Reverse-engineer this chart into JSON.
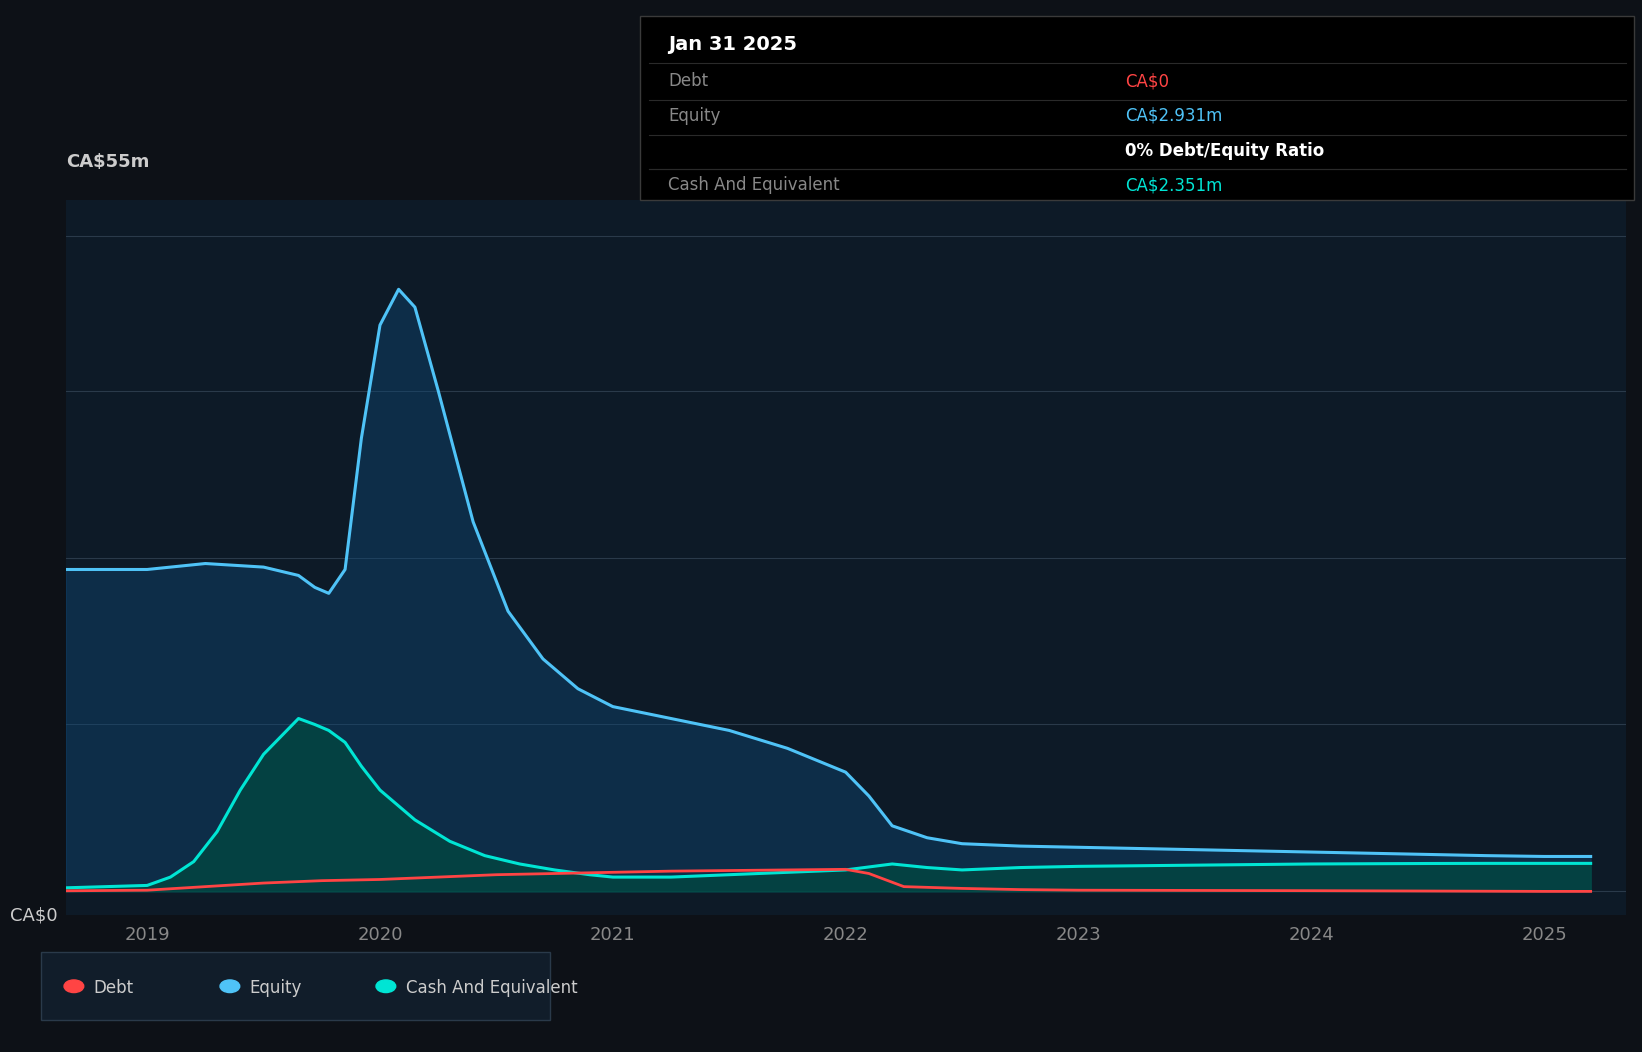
{
  "bg_color": "#0d1117",
  "plot_bg_color": "#0d1a27",
  "grid_color": "#2a3a4a",
  "title_label": "CA$55m",
  "zero_label": "CA$0",
  "x_ticks": [
    2019,
    2020,
    2021,
    2022,
    2023,
    2024,
    2025
  ],
  "ylim": [
    -2,
    58
  ],
  "xlim_start": 2018.65,
  "xlim_end": 2025.35,
  "tooltip_title": "Jan 31 2025",
  "tooltip_rows": [
    {
      "label": "Debt",
      "value": "CA$0",
      "value_color": "#ff4444"
    },
    {
      "label": "Equity",
      "value": "CA$2.931m",
      "value_color": "#4fc3f7"
    },
    {
      "label": "",
      "value": "0% Debt/Equity Ratio",
      "value_color": "#ffffff"
    },
    {
      "label": "Cash And Equivalent",
      "value": "CA$2.351m",
      "value_color": "#00e5d4"
    }
  ],
  "legend_items": [
    {
      "label": "Debt",
      "color": "#ff4444"
    },
    {
      "label": "Equity",
      "color": "#4fc3f7"
    },
    {
      "label": "Cash And Equivalent",
      "color": "#00e5d4"
    }
  ],
  "equity_x": [
    2018.65,
    2019.0,
    2019.25,
    2019.5,
    2019.65,
    2019.72,
    2019.78,
    2019.85,
    2019.92,
    2020.0,
    2020.08,
    2020.15,
    2020.25,
    2020.4,
    2020.55,
    2020.7,
    2020.85,
    2021.0,
    2021.25,
    2021.5,
    2021.75,
    2022.0,
    2022.1,
    2022.2,
    2022.35,
    2022.5,
    2022.75,
    2023.0,
    2023.25,
    2023.5,
    2023.75,
    2024.0,
    2024.25,
    2024.5,
    2024.75,
    2025.0,
    2025.2
  ],
  "equity_y": [
    27.0,
    27.0,
    27.5,
    27.2,
    26.5,
    25.5,
    25.0,
    27.0,
    38.0,
    47.5,
    50.5,
    49.0,
    42.0,
    31.0,
    23.5,
    19.5,
    17.0,
    15.5,
    14.5,
    13.5,
    12.0,
    10.0,
    8.0,
    5.5,
    4.5,
    4.0,
    3.8,
    3.7,
    3.6,
    3.5,
    3.4,
    3.3,
    3.2,
    3.1,
    3.0,
    2.93,
    2.93
  ],
  "cash_x": [
    2018.65,
    2019.0,
    2019.1,
    2019.2,
    2019.3,
    2019.4,
    2019.5,
    2019.6,
    2019.65,
    2019.72,
    2019.78,
    2019.85,
    2019.92,
    2020.0,
    2020.15,
    2020.3,
    2020.45,
    2020.6,
    2020.75,
    2020.9,
    2021.0,
    2021.25,
    2021.5,
    2021.75,
    2022.0,
    2022.2,
    2022.35,
    2022.5,
    2022.75,
    2023.0,
    2023.25,
    2023.5,
    2023.75,
    2024.0,
    2024.25,
    2024.5,
    2024.75,
    2025.0,
    2025.2
  ],
  "cash_y": [
    0.3,
    0.5,
    1.2,
    2.5,
    5.0,
    8.5,
    11.5,
    13.5,
    14.5,
    14.0,
    13.5,
    12.5,
    10.5,
    8.5,
    6.0,
    4.2,
    3.0,
    2.3,
    1.8,
    1.4,
    1.2,
    1.2,
    1.4,
    1.6,
    1.8,
    2.3,
    2.0,
    1.8,
    2.0,
    2.1,
    2.15,
    2.2,
    2.25,
    2.3,
    2.32,
    2.34,
    2.35,
    2.35,
    2.35
  ],
  "debt_x": [
    2018.65,
    2019.0,
    2019.25,
    2019.5,
    2019.75,
    2020.0,
    2020.25,
    2020.5,
    2020.75,
    2021.0,
    2021.25,
    2021.5,
    2021.75,
    2022.0,
    2022.1,
    2022.25,
    2022.5,
    2022.75,
    2023.0,
    2023.5,
    2024.0,
    2024.5,
    2025.0,
    2025.2
  ],
  "debt_y": [
    0.05,
    0.1,
    0.4,
    0.7,
    0.9,
    1.0,
    1.2,
    1.4,
    1.5,
    1.6,
    1.7,
    1.75,
    1.8,
    1.85,
    1.5,
    0.4,
    0.25,
    0.15,
    0.1,
    0.08,
    0.06,
    0.03,
    0.0,
    0.0
  ]
}
